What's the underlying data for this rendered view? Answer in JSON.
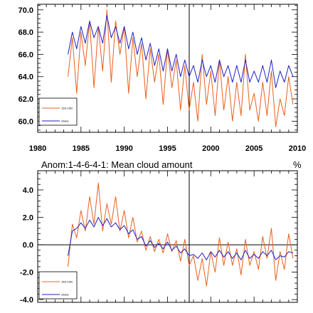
{
  "chart_data": [
    {
      "type": "line",
      "title": "",
      "x_range": [
        1980,
        2010
      ],
      "ylim": [
        59,
        70.5
      ],
      "y_ticks": [
        "70.0",
        "68.0",
        "66.0",
        "64.0",
        "62.0",
        "60.0"
      ],
      "y_tick_values": [
        70,
        68,
        66,
        64,
        62,
        60
      ],
      "x_tick_labels": [
        "1980",
        "1985",
        "1990",
        "1995",
        "2000",
        "2005",
        "2010"
      ],
      "x_tick_values": [
        1980,
        1985,
        1990,
        1995,
        2000,
        2005,
        2010
      ],
      "vline": 1998,
      "grid": false,
      "legend_position": "bottom-left",
      "series": [
        {
          "name": "15S-15N",
          "color": "#e8601c",
          "x": [
            1983.5,
            1984,
            1984.5,
            1985,
            1985.5,
            1986,
            1986.5,
            1987,
            1987.5,
            1988,
            1988.5,
            1989,
            1989.5,
            1990,
            1990.5,
            1991,
            1991.5,
            1992,
            1992.5,
            1993,
            1993.5,
            1994,
            1994.5,
            1995,
            1995.5,
            1996,
            1996.5,
            1997,
            1997.5,
            1998,
            1998.5,
            1999,
            1999.5,
            2000,
            2000.5,
            2001,
            2001.5,
            2002,
            2002.5,
            2003,
            2003.5,
            2004,
            2004.5,
            2005,
            2005.5,
            2006,
            2006.5,
            2007,
            2007.5,
            2008,
            2008.5,
            2009,
            2009.5
          ],
          "values": [
            64.0,
            67.5,
            62.5,
            68.0,
            65.0,
            69.0,
            63.0,
            68.5,
            64.5,
            70.0,
            63.5,
            69.0,
            66.0,
            68.5,
            62.5,
            67.5,
            64.0,
            67.0,
            62.0,
            66.5,
            63.5,
            66.0,
            61.5,
            66.5,
            63.0,
            65.5,
            61.0,
            65.0,
            61.0,
            63.5,
            60.0,
            66.0,
            61.5,
            64.5,
            60.5,
            65.5,
            61.0,
            64.0,
            60.0,
            63.5,
            60.5,
            66.0,
            61.0,
            62.5,
            60.0,
            63.5,
            60.5,
            64.5,
            59.5,
            62.0,
            60.5,
            64.0,
            61.5
          ]
        },
        {
          "name": "Globe",
          "color": "#2020c8",
          "x": [
            1983.5,
            1984,
            1984.5,
            1985,
            1985.5,
            1986,
            1986.5,
            1987,
            1987.5,
            1988,
            1988.5,
            1989,
            1989.5,
            1990,
            1990.5,
            1991,
            1991.5,
            1992,
            1992.5,
            1993,
            1993.5,
            1994,
            1994.5,
            1995,
            1995.5,
            1996,
            1996.5,
            1997,
            1997.5,
            1998,
            1998.5,
            1999,
            1999.5,
            2000,
            2000.5,
            2001,
            2001.5,
            2002,
            2002.5,
            2003,
            2003.5,
            2004,
            2004.5,
            2005,
            2005.5,
            2006,
            2006.5,
            2007,
            2007.5,
            2008,
            2008.5,
            2009,
            2009.5
          ],
          "values": [
            66.0,
            68.0,
            66.5,
            68.5,
            67.0,
            69.0,
            67.5,
            68.5,
            67.0,
            69.5,
            67.5,
            68.5,
            67.0,
            68.5,
            66.5,
            68.0,
            66.0,
            67.5,
            65.5,
            67.0,
            65.0,
            66.5,
            64.5,
            66.5,
            64.5,
            66.0,
            64.0,
            65.5,
            64.0,
            65.0,
            63.5,
            65.5,
            64.0,
            65.0,
            63.5,
            65.5,
            64.0,
            65.0,
            63.5,
            65.0,
            63.5,
            65.5,
            63.5,
            64.5,
            63.5,
            65.0,
            63.5,
            65.5,
            63.0,
            64.5,
            63.5,
            65.0,
            64.0
          ]
        }
      ]
    },
    {
      "type": "line",
      "title": "Anom:1-4-6-4-1: Mean cloud amount",
      "unit": "%",
      "x_range": [
        1980,
        2010
      ],
      "ylim": [
        -4.2,
        5.4
      ],
      "y_ticks": [
        "4.0",
        "2.0",
        "0.0",
        "-2.0",
        "-4.0"
      ],
      "y_tick_values": [
        4,
        2,
        0,
        -2,
        -4
      ],
      "vline": 1998,
      "zero_line": true,
      "grid": false,
      "legend_position": "bottom-left",
      "series": [
        {
          "name": "15S-15N",
          "color": "#e8601c",
          "x": [
            1983.5,
            1984,
            1984.5,
            1985,
            1985.5,
            1986,
            1986.5,
            1987,
            1987.5,
            1988,
            1988.5,
            1989,
            1989.5,
            1990,
            1990.5,
            1991,
            1991.5,
            1992,
            1992.5,
            1993,
            1993.5,
            1994,
            1994.5,
            1995,
            1995.5,
            1996,
            1996.5,
            1997,
            1997.5,
            1998,
            1998.5,
            1999,
            1999.5,
            2000,
            2000.5,
            2001,
            2001.5,
            2002,
            2002.5,
            2003,
            2003.5,
            2004,
            2004.5,
            2005,
            2005.5,
            2006,
            2006.5,
            2007,
            2007.5,
            2008,
            2008.5,
            2009,
            2009.5
          ],
          "values": [
            -1.6,
            1.5,
            0.5,
            2.5,
            1.0,
            3.5,
            1.5,
            4.5,
            1.0,
            3.0,
            1.5,
            3.5,
            1.0,
            2.5,
            0.5,
            2.0,
            0.2,
            1.0,
            -0.4,
            0.6,
            -0.5,
            0.4,
            -0.6,
            0.8,
            -0.5,
            0.3,
            -1.2,
            0.4,
            -1.5,
            -0.8,
            -2.6,
            -1.0,
            -3.0,
            -0.5,
            -2.0,
            0.5,
            -1.5,
            0.2,
            -1.5,
            -0.3,
            -2.2,
            0.4,
            -1.5,
            -0.5,
            -1.8,
            0.6,
            -1.0,
            1.2,
            -2.6,
            -0.5,
            -1.8,
            0.8,
            -1.0
          ]
        },
        {
          "name": "Globe",
          "color": "#2020c8",
          "x": [
            1983.5,
            1984,
            1984.5,
            1985,
            1985.5,
            1986,
            1986.5,
            1987,
            1987.5,
            1988,
            1988.5,
            1989,
            1989.5,
            1990,
            1990.5,
            1991,
            1991.5,
            1992,
            1992.5,
            1993,
            1993.5,
            1994,
            1994.5,
            1995,
            1995.5,
            1996,
            1996.5,
            1997,
            1997.5,
            1998,
            1998.5,
            1999,
            1999.5,
            2000,
            2000.5,
            2001,
            2001.5,
            2002,
            2002.5,
            2003,
            2003.5,
            2004,
            2004.5,
            2005,
            2005.5,
            2006,
            2006.5,
            2007,
            2007.5,
            2008,
            2008.5,
            2009,
            2009.5
          ],
          "values": [
            -0.8,
            1.0,
            1.2,
            1.6,
            1.2,
            1.8,
            1.3,
            2.0,
            1.4,
            1.9,
            1.3,
            1.6,
            1.1,
            1.4,
            0.8,
            1.1,
            0.4,
            0.6,
            -0.1,
            0.3,
            -0.2,
            0.1,
            -0.3,
            0.2,
            -0.4,
            -0.1,
            -0.6,
            -0.3,
            -0.8,
            -0.7,
            -1.0,
            -0.6,
            -1.1,
            -0.5,
            -0.9,
            -0.4,
            -0.9,
            -0.5,
            -1.0,
            -0.6,
            -1.1,
            -0.4,
            -1.0,
            -0.7,
            -1.0,
            -0.5,
            -0.8,
            -0.4,
            -1.1,
            -0.8,
            -0.9,
            -0.5,
            -0.6
          ]
        }
      ]
    }
  ]
}
